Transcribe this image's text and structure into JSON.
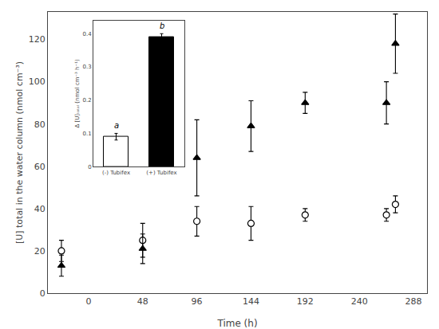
{
  "chart_data": [
    {
      "type": "scatter",
      "xlabel": "Time (h)",
      "ylabel": "[U] total in the water column (nmol cm⁻³)",
      "x": [
        -24,
        48,
        96,
        144,
        192,
        264,
        272
      ],
      "series": [
        {
          "color": "white",
          "marker": "circle",
          "values": [
            20,
            25,
            34,
            33,
            37,
            37,
            42
          ],
          "errors": [
            5,
            8,
            7,
            8,
            3,
            3,
            4
          ]
        },
        {
          "color": "black",
          "marker": "triangle",
          "values": [
            13,
            21,
            64,
            79,
            90,
            90,
            118
          ],
          "errors": [
            5,
            7,
            18,
            12,
            5,
            10,
            14
          ]
        }
      ],
      "xlim": [
        -36,
        300
      ],
      "ylim": [
        0,
        133
      ],
      "xticks": [
        0,
        48,
        96,
        144,
        192,
        240,
        288
      ],
      "yticks": [
        0,
        20,
        40,
        60,
        80,
        100,
        120
      ],
      "grid": false
    },
    {
      "type": "bar",
      "ylabel": "Δ [U]ₜₒₜₐₗ (nmol cm⁻³ h⁻¹)",
      "categories": [
        "(-) Tubifex",
        "(+) Tubifex"
      ],
      "values": [
        0.09,
        0.39
      ],
      "errors": [
        0.01,
        0.01
      ],
      "colors": [
        "white",
        "black"
      ],
      "ylim": [
        0,
        0.44
      ],
      "yticks": [
        0,
        0.1,
        0.2,
        0.3,
        0.4
      ],
      "grid": false,
      "annotations": [
        {
          "category": "(-) Tubifex",
          "text": "a"
        },
        {
          "category": "(+) Tubifex",
          "text": "b"
        }
      ]
    }
  ]
}
